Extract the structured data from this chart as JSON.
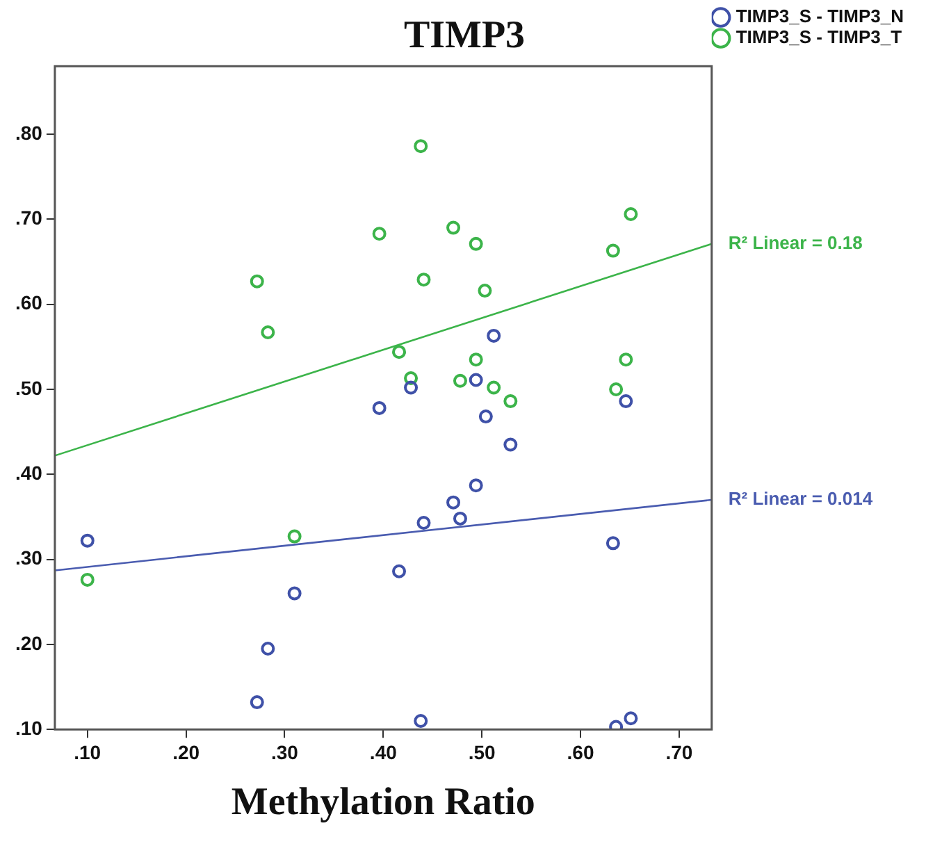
{
  "chart_data": {
    "type": "scatter",
    "title": "TIMP3",
    "xlabel": "Methylation Ratio",
    "xlim": [
      0.067,
      0.733
    ],
    "ylim": [
      0.1,
      0.88
    ],
    "xticks": [
      {
        "value": 0.1,
        "label": ".10"
      },
      {
        "value": 0.2,
        "label": ".20"
      },
      {
        "value": 0.3,
        "label": ".30"
      },
      {
        "value": 0.4,
        "label": ".40"
      },
      {
        "value": 0.5,
        "label": ".50"
      },
      {
        "value": 0.6,
        "label": ".60"
      },
      {
        "value": 0.7,
        "label": ".70"
      }
    ],
    "yticks": [
      {
        "value": 0.1,
        "label": ".10"
      },
      {
        "value": 0.2,
        "label": ".20"
      },
      {
        "value": 0.3,
        "label": ".30"
      },
      {
        "value": 0.4,
        "label": ".40"
      },
      {
        "value": 0.5,
        "label": ".50"
      },
      {
        "value": 0.6,
        "label": ".60"
      },
      {
        "value": 0.7,
        "label": ".70"
      },
      {
        "value": 0.8,
        "label": ".80"
      }
    ],
    "grid": false,
    "legend": "top right",
    "marker": "circle",
    "series": [
      {
        "name": "TIMP3_S - TIMP3_N",
        "color": "#3f51a8",
        "x": [
          0.1,
          0.31,
          0.283,
          0.272,
          0.416,
          0.441,
          0.438,
          0.471,
          0.478,
          0.494,
          0.396,
          0.428,
          0.494,
          0.512,
          0.504,
          0.529,
          0.633,
          0.636,
          0.651,
          0.646
        ],
        "values": [
          0.322,
          0.26,
          0.195,
          0.132,
          0.286,
          0.343,
          0.11,
          0.367,
          0.348,
          0.387,
          0.478,
          0.502,
          0.511,
          0.563,
          0.468,
          0.435,
          0.319,
          0.103,
          0.113,
          0.486
        ]
      },
      {
        "name": "TIMP3_S - TIMP3_T",
        "color": "#3cb44a",
        "x": [
          0.1,
          0.31,
          0.438,
          0.396,
          0.471,
          0.494,
          0.272,
          0.441,
          0.283,
          0.416,
          0.428,
          0.478,
          0.651,
          0.633,
          0.503,
          0.494,
          0.646,
          0.512,
          0.529,
          0.636
        ],
        "values": [
          0.276,
          0.327,
          0.786,
          0.683,
          0.69,
          0.671,
          0.627,
          0.629,
          0.567,
          0.544,
          0.513,
          0.51,
          0.706,
          0.663,
          0.616,
          0.535,
          0.535,
          0.502,
          0.486,
          0.5
        ]
      },
      {
        "type": "line",
        "marker": "none",
        "color": "#4a5cb0",
        "x": [
          0.067,
          0.733
        ],
        "values": [
          0.287,
          0.37
        ]
      },
      {
        "type": "line",
        "marker": "none",
        "color": "#3cb44a",
        "x": [
          0.067,
          0.733
        ],
        "values": [
          0.422,
          0.671
        ]
      }
    ],
    "annotations": [
      {
        "text": "R² Linear = 0.18",
        "x": 0.733,
        "y": 0.671
      },
      {
        "text": "R² Linear = 0.014",
        "x": 0.733,
        "y": 0.37
      }
    ]
  }
}
